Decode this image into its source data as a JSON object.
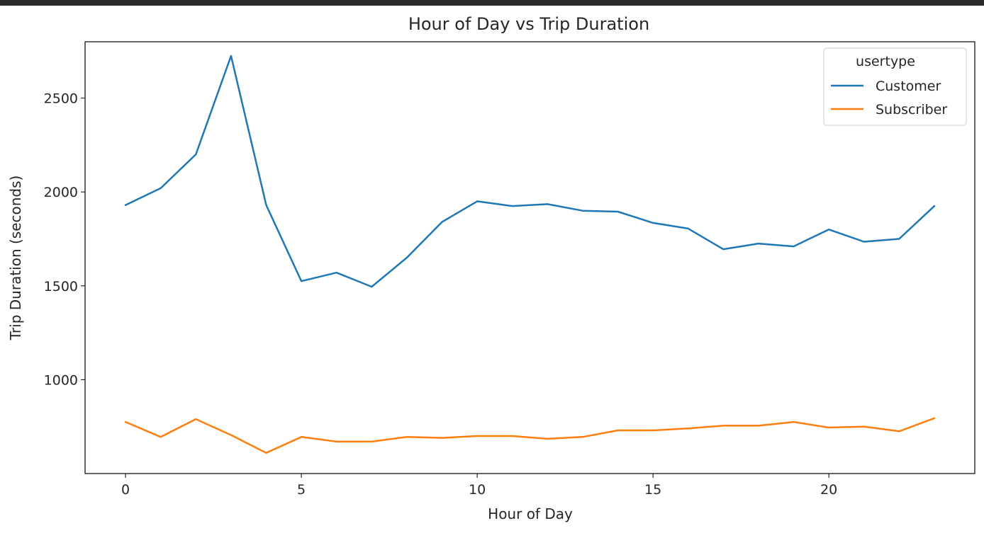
{
  "chart_data": {
    "type": "line",
    "title": "Hour of Day vs Trip Duration",
    "xlabel": "Hour of Day",
    "ylabel": "Trip Duration (seconds)",
    "xlim": [
      -1.15,
      24.15
    ],
    "ylim": [
      500,
      2800
    ],
    "xticks": [
      0,
      5,
      10,
      15,
      20
    ],
    "yticks": [
      1000,
      1500,
      2000,
      2500
    ],
    "grid": false,
    "legend": {
      "title": "usertype",
      "placement": "top-right"
    },
    "x": [
      0,
      1,
      2,
      3,
      4,
      5,
      6,
      7,
      8,
      9,
      10,
      11,
      12,
      13,
      14,
      15,
      16,
      17,
      18,
      19,
      20,
      21,
      22,
      23
    ],
    "series": [
      {
        "name": "Customer",
        "color": "#1f77b4",
        "values": [
          1930,
          2020,
          2200,
          2725,
          1930,
          1525,
          1570,
          1495,
          1650,
          1840,
          1950,
          1925,
          1935,
          1900,
          1895,
          1835,
          1805,
          1695,
          1725,
          1710,
          1800,
          1735,
          1750,
          1925
        ]
      },
      {
        "name": "Subscriber",
        "color": "#ff7f0e",
        "values": [
          775,
          695,
          790,
          705,
          610,
          695,
          670,
          670,
          695,
          690,
          700,
          700,
          685,
          695,
          730,
          730,
          740,
          755,
          755,
          775,
          745,
          750,
          725,
          795
        ]
      }
    ]
  }
}
